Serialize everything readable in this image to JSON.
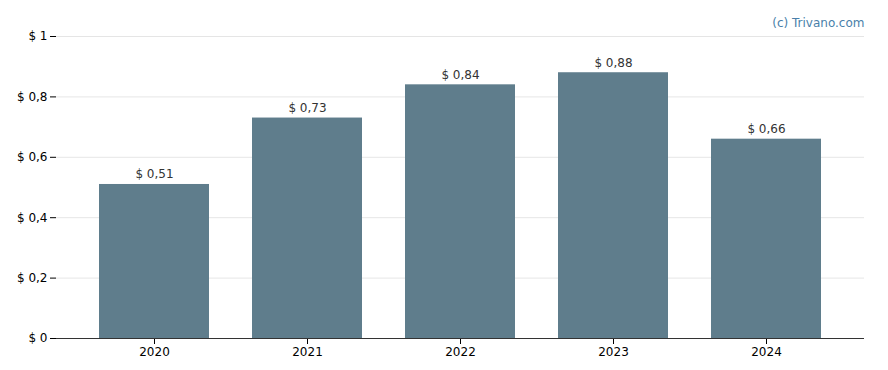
{
  "chart_data": {
    "type": "bar",
    "categories": [
      "2020",
      "2021",
      "2022",
      "2023",
      "2024"
    ],
    "values": [
      0.51,
      0.73,
      0.84,
      0.88,
      0.66
    ],
    "value_labels": [
      "$ 0,51",
      "$ 0,73",
      "$ 0,84",
      "$ 0,88",
      "$ 0,66"
    ],
    "data_labels": true,
    "color": "#5f7d8c",
    "ylim": [
      0,
      1.0
    ],
    "yticks": [
      {
        "value": 0,
        "label": "$ 0"
      },
      {
        "value": 0.2,
        "label": "$ 0,2"
      },
      {
        "value": 0.4,
        "label": "$ 0,4"
      },
      {
        "value": 0.6,
        "label": "$ 0,6"
      },
      {
        "value": 0.8,
        "label": "$ 0,8"
      },
      {
        "value": 1.0,
        "label": "$ 1"
      }
    ],
    "grid": true,
    "annotations": [
      {
        "text": "(c) Trivano.com",
        "color": "#4a7faa"
      }
    ]
  }
}
